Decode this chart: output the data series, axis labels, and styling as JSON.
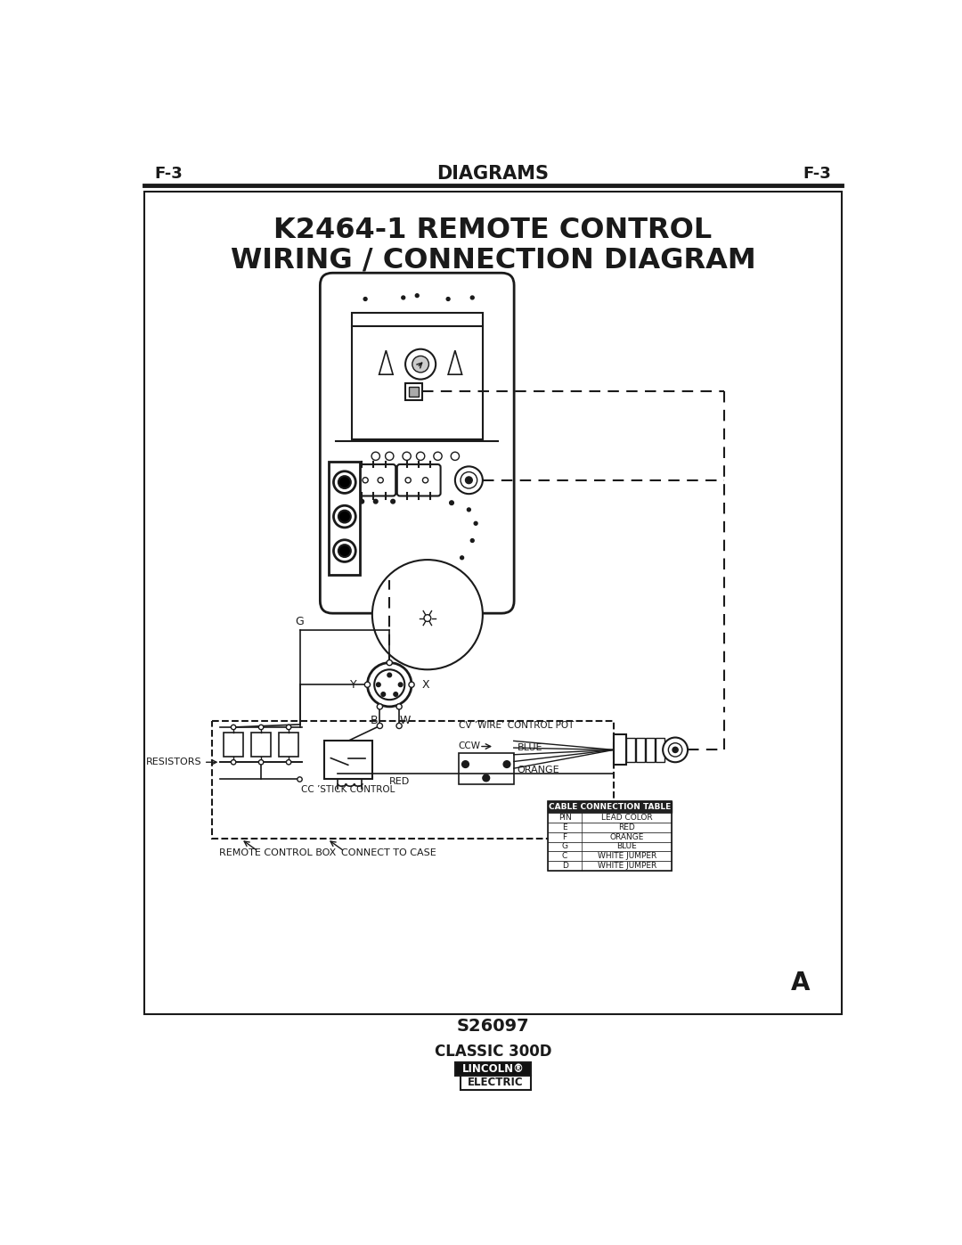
{
  "page_title": "DIAGRAMS",
  "page_code": "F-3",
  "diagram_title_line1": "K2464-1 REMOTE CONTROL",
  "diagram_title_line2": "WIRING / CONNECTION DIAGRAM",
  "footer_model": "CLASSIC 300D",
  "footer_brand_top": "LINCOLN®",
  "footer_brand_bot": "ELECTRIC",
  "doc_number": "S26097",
  "label_A": "A",
  "bg_color": "#ffffff",
  "border_color": "#1a1a1a",
  "text_color": "#1a1a1a",
  "table_title": "CABLE CONNECTION TABLE",
  "table_headers": [
    "PIN",
    "LEAD COLOR"
  ],
  "table_rows": [
    [
      "E",
      "RED"
    ],
    [
      "F",
      "ORANGE"
    ],
    [
      "G",
      "BLUE"
    ],
    [
      "C",
      "WHITE JUMPER"
    ],
    [
      "D",
      "WHITE JUMPER"
    ]
  ],
  "labels": {
    "resistors": "RESISTORS",
    "remote_control_box": "REMOTE CONTROL BOX",
    "connect_to_case": "CONNECT TO CASE",
    "cc_stick_control": "CC ’STICK CONTROL",
    "cv_wire_control": "CV ’WIRE’ CONTROL POT",
    "ccw": "CCW",
    "blue": "BLUE",
    "orange": "ORANGE",
    "red": "RED",
    "Y": "Y",
    "B": "B",
    "W": "W",
    "X": "X",
    "G_label": "G"
  }
}
